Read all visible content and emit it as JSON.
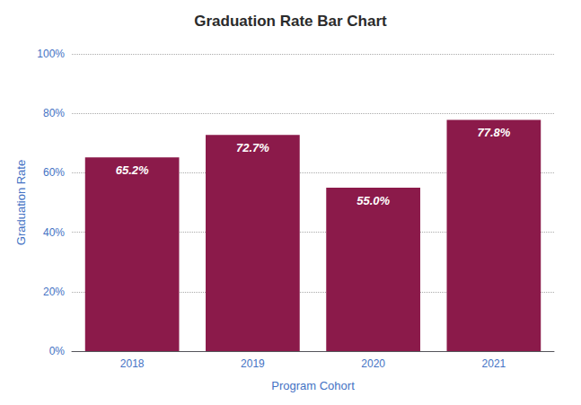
{
  "chart_data": {
    "type": "bar",
    "title": "Graduation Rate Bar Chart",
    "x_label": "Program Cohort",
    "y_label": "Graduation Rate",
    "categories": [
      "2018",
      "2019",
      "2020",
      "2021"
    ],
    "values": [
      65.2,
      72.7,
      55.0,
      77.8
    ],
    "value_labels": [
      "65.2%",
      "72.7%",
      "55.0%",
      "77.8%"
    ],
    "data_labels": true,
    "color": "#8B1A4A",
    "ylim": [
      0,
      100
    ],
    "yticks": [
      {
        "value": 0,
        "label": "0%"
      },
      {
        "value": 20,
        "label": "20%"
      },
      {
        "value": 40,
        "label": "40%"
      },
      {
        "value": 60,
        "label": "60%"
      },
      {
        "value": 80,
        "label": "80%"
      },
      {
        "value": 100,
        "label": "100%"
      }
    ],
    "grid": true
  }
}
